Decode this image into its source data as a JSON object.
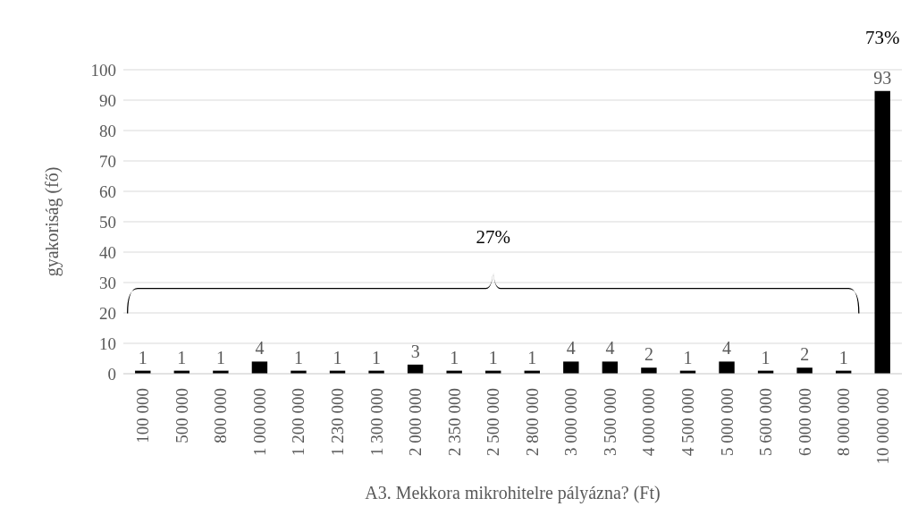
{
  "chart_data": {
    "type": "bar",
    "xlabel": "A3. Mekkora mikrohitelre pályázna? (Ft)",
    "ylabel": "gyakoriság (fő)",
    "categories": [
      "100 000",
      "500 000",
      "800 000",
      "1 000 000",
      "1 200 000",
      "1 230 000",
      "1 300 000",
      "2 000 000",
      "2 350 000",
      "2 500 000",
      "2 800 000",
      "3 000 000",
      "3 500 000",
      "4 000 000",
      "4 500 000",
      "5 000 000",
      "5 600 000",
      "6 000 000",
      "8 000 000",
      "10 000 000"
    ],
    "values": [
      1,
      1,
      1,
      4,
      1,
      1,
      1,
      3,
      1,
      1,
      1,
      4,
      4,
      2,
      1,
      4,
      1,
      2,
      1,
      93
    ],
    "color": "#000000",
    "ylim": [
      0,
      100
    ],
    "yticks": [
      0,
      10,
      20,
      30,
      40,
      50,
      60,
      70,
      80,
      90,
      100
    ],
    "grid": "y",
    "data_labels": true,
    "annotations": [
      "27%",
      "73%"
    ]
  }
}
